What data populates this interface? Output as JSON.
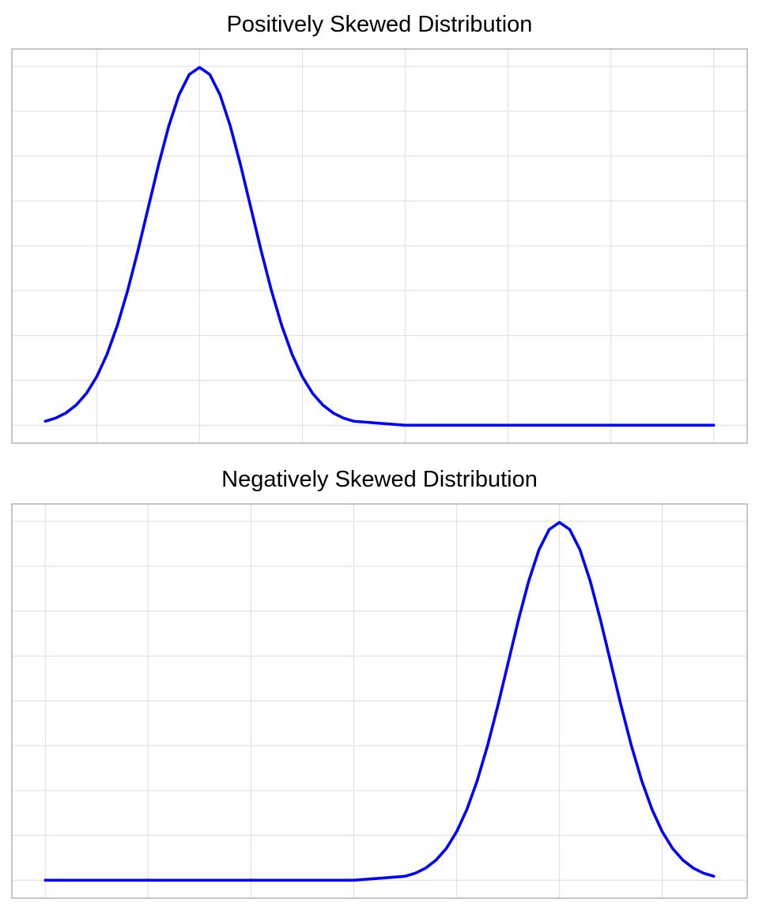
{
  "colors": {
    "line": "#0000FF",
    "grid": "#dedede",
    "border": "#b3b3b3"
  },
  "chart_data": [
    {
      "type": "line",
      "title": "Positively Skewed Distribution",
      "xlabel": "",
      "ylabel": "",
      "xlim": [
        -2.825,
        4.325
      ],
      "ylim": [
        -0.04,
        0.839
      ],
      "x_gridlines": [
        -2,
        -1,
        0,
        1,
        2,
        3,
        4
      ],
      "y_gridlines": [
        0,
        0.1,
        0.2,
        0.3,
        0.4,
        0.5,
        0.6,
        0.7,
        0.8
      ],
      "grid": true,
      "series": [
        {
          "name": "density",
          "x": [
            -2.5,
            -2.4,
            -2.3,
            -2.2,
            -2.1,
            -2.0,
            -1.9,
            -1.8,
            -1.7,
            -1.6,
            -1.5,
            -1.4,
            -1.3,
            -1.2,
            -1.1,
            -1.0,
            -0.9,
            -0.8,
            -0.7,
            -0.6,
            -0.5,
            -0.4,
            -0.3,
            -0.2,
            -0.1,
            0.0,
            0.1,
            0.2,
            0.3,
            0.4,
            0.5,
            1.0,
            4.0
          ],
          "y": [
            0.0089,
            0.0158,
            0.0272,
            0.0448,
            0.0709,
            0.108,
            0.1579,
            0.2218,
            0.2995,
            0.3884,
            0.4839,
            0.5794,
            0.6664,
            0.7365,
            0.7821,
            0.7979,
            0.7821,
            0.7365,
            0.6664,
            0.5794,
            0.4839,
            0.3884,
            0.2995,
            0.2218,
            0.1579,
            0.108,
            0.0709,
            0.0448,
            0.0272,
            0.0158,
            0.0089,
            0,
            0
          ]
        }
      ]
    },
    {
      "type": "line",
      "title": "Negatively Skewed Distribution",
      "xlabel": "",
      "ylabel": "",
      "xlim": [
        -4.325,
        2.825
      ],
      "ylim": [
        -0.04,
        0.839
      ],
      "x_gridlines": [
        -4,
        -3,
        -2,
        -1,
        0,
        1,
        2
      ],
      "y_gridlines": [
        0,
        0.1,
        0.2,
        0.3,
        0.4,
        0.5,
        0.6,
        0.7,
        0.8
      ],
      "grid": true,
      "series": [
        {
          "name": "density",
          "x": [
            -4.0,
            -1.0,
            -0.5,
            -0.4,
            -0.3,
            -0.2,
            -0.1,
            0.0,
            0.1,
            0.2,
            0.3,
            0.4,
            0.5,
            0.6,
            0.7,
            0.8,
            0.9,
            1.0,
            1.1,
            1.2,
            1.3,
            1.4,
            1.5,
            1.6,
            1.7,
            1.8,
            1.9,
            2.0,
            2.1,
            2.2,
            2.3,
            2.4,
            2.5
          ],
          "y": [
            0,
            0,
            0.0089,
            0.0158,
            0.0272,
            0.0448,
            0.0709,
            0.108,
            0.1579,
            0.2218,
            0.2995,
            0.3884,
            0.4839,
            0.5794,
            0.6664,
            0.7365,
            0.7821,
            0.7979,
            0.7821,
            0.7365,
            0.6664,
            0.5794,
            0.4839,
            0.3884,
            0.2995,
            0.2218,
            0.1579,
            0.108,
            0.0709,
            0.0448,
            0.0272,
            0.0158,
            0.0089
          ]
        }
      ]
    }
  ]
}
